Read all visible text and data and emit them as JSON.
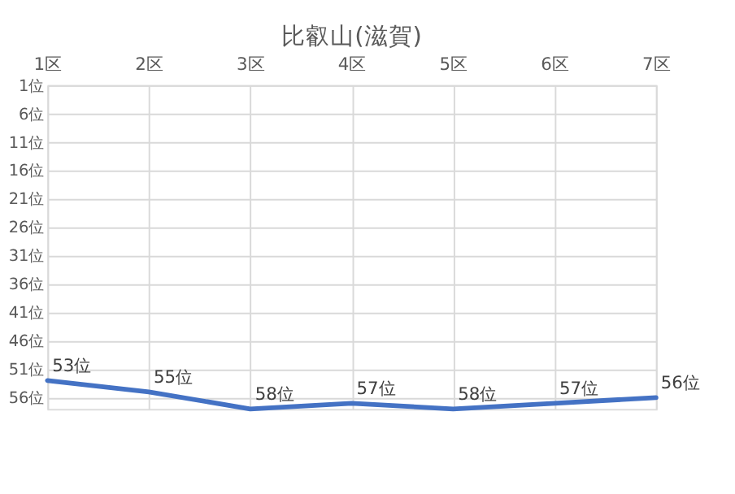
{
  "chart_data": {
    "type": "line",
    "title": "比叡山(滋賀)",
    "categories": [
      "1区",
      "2区",
      "3区",
      "4区",
      "5区",
      "6区",
      "7区"
    ],
    "series": [
      {
        "color": "#4472c4",
        "values": [
          53,
          55,
          58,
          57,
          58,
          57,
          56
        ],
        "value_labels": [
          "53位",
          "55位",
          "58位",
          "57位",
          "58位",
          "57位",
          "56位"
        ]
      }
    ],
    "ylim": [
      58,
      1
    ],
    "yticks": [
      {
        "value": 1,
        "label": "1位"
      },
      {
        "value": 6,
        "label": "6位"
      },
      {
        "value": 11,
        "label": "11位"
      },
      {
        "value": 16,
        "label": "16位"
      },
      {
        "value": 21,
        "label": "21位"
      },
      {
        "value": 26,
        "label": "26位"
      },
      {
        "value": 31,
        "label": "31位"
      },
      {
        "value": 36,
        "label": "36位"
      },
      {
        "value": 41,
        "label": "41位"
      },
      {
        "value": 46,
        "label": "46位"
      },
      {
        "value": 51,
        "label": "51位"
      },
      {
        "value": 56,
        "label": "56位"
      }
    ],
    "grid": true,
    "legend": false,
    "marker": "none",
    "line_style": "solid"
  }
}
